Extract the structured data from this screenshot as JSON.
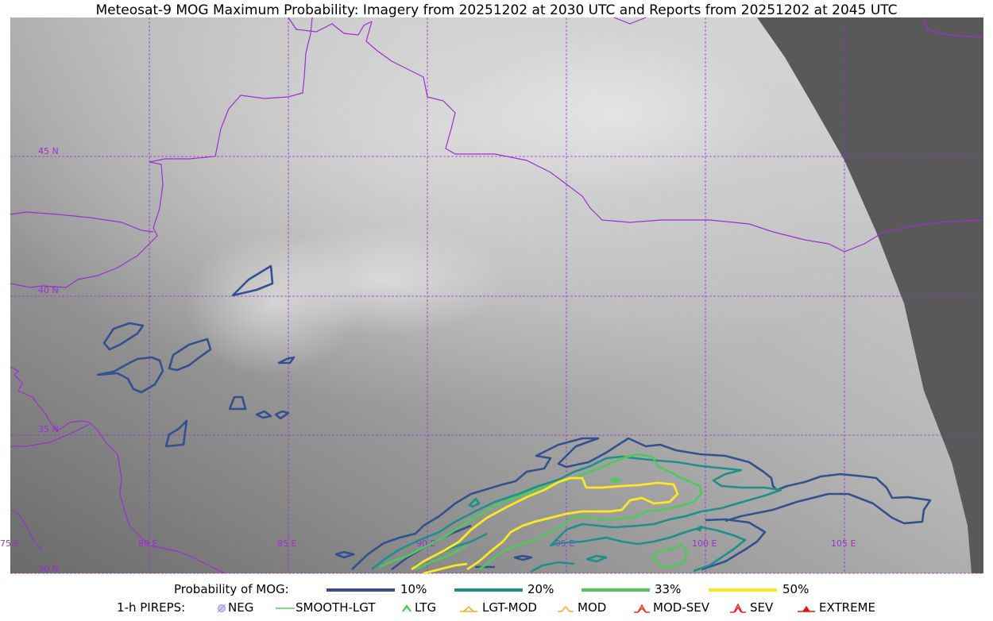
{
  "title": "Meteosat-9 MOG Maximum Probability: Imagery from 20251202 at 2030 UTC and Reports from 20251202 at 2045 UTC",
  "map": {
    "lat_labels": [
      "45 N",
      "40 N",
      "35 N",
      "30 N"
    ],
    "lon_labels": [
      "75 E",
      "80 E",
      "85 E",
      "90 E",
      "95 E",
      "100 E",
      "105 E"
    ],
    "colors": {
      "grid": "#9b30d0",
      "borders": "#9b30d0",
      "no_data": "#595959",
      "contour_10": "#34508f",
      "contour_20": "#1f8f8a",
      "contour_33": "#4fc85c",
      "contour_50": "#fde725"
    }
  },
  "legend": {
    "probability_label": "Probability of MOG:",
    "levels": [
      {
        "label": "10%",
        "color": "#34508f"
      },
      {
        "label": "20%",
        "color": "#1f8f8a"
      },
      {
        "label": "33%",
        "color": "#4fc85c"
      },
      {
        "label": "50%",
        "color": "#fde725"
      }
    ],
    "pireps_label": "1-h PIREPS:",
    "pireps": [
      {
        "label": "NEG",
        "icon": "neg-icon"
      },
      {
        "label": "SMOOTH-LGT",
        "icon": "smooth-lgt-icon"
      },
      {
        "label": "LTG",
        "icon": "ltg-icon"
      },
      {
        "label": "LGT-MOD",
        "icon": "lgt-mod-icon"
      },
      {
        "label": "MOD",
        "icon": "mod-icon"
      },
      {
        "label": "MOD-SEV",
        "icon": "mod-sev-icon"
      },
      {
        "label": "SEV",
        "icon": "sev-icon"
      },
      {
        "label": "EXTREME",
        "icon": "extreme-icon"
      }
    ]
  }
}
